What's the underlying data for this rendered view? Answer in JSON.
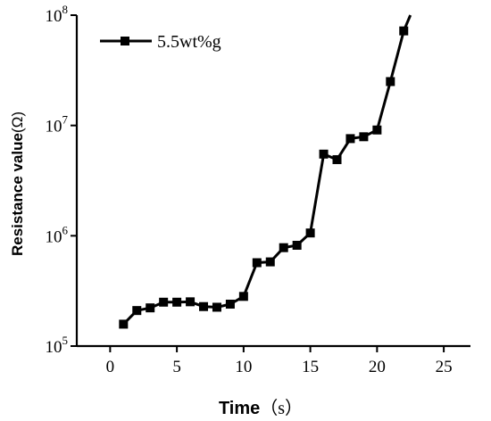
{
  "chart_data": {
    "type": "line",
    "title": "",
    "xlabel": "Time",
    "xlabel_unit": "（s）",
    "ylabel": "Resistance value",
    "ylabel_unit": "(Ω)",
    "xlim": [
      -2.5,
      27
    ],
    "ylim": [
      100000,
      100000000
    ],
    "y_scale": "log",
    "grid": false,
    "legend_position": "top-left",
    "x_ticks": [
      0,
      5,
      10,
      15,
      20,
      25
    ],
    "y_ticks": [
      {
        "value": 100000,
        "base": "10",
        "exp": "5"
      },
      {
        "value": 1000000,
        "base": "10",
        "exp": "6"
      },
      {
        "value": 10000000,
        "base": "10",
        "exp": "7"
      },
      {
        "value": 100000000,
        "base": "10",
        "exp": "8"
      }
    ],
    "series": [
      {
        "name": "5.5wt%g",
        "color": "#000000",
        "marker": "square",
        "x": [
          1,
          2,
          3,
          4,
          5,
          6,
          7,
          8,
          9,
          10,
          11,
          12,
          13,
          14,
          15,
          16,
          17,
          18,
          19,
          20,
          21,
          22,
          22.5
        ],
        "y": [
          158000,
          210000,
          222000,
          250000,
          250000,
          252000,
          228000,
          225000,
          240000,
          282000,
          570000,
          580000,
          780000,
          820000,
          1060000,
          5500000,
          4900000,
          7600000,
          7900000,
          9100000,
          25000000,
          72000000,
          100000000
        ]
      }
    ]
  }
}
